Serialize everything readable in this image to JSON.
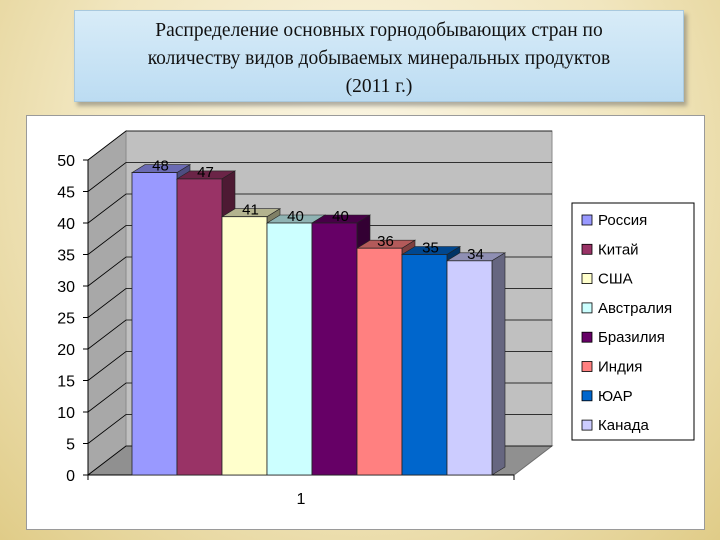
{
  "title": {
    "line1": "Распределение основных горнодобывающих стран по",
    "line2": "количеству видов добываемых минеральных продуктов",
    "line3": "(2011 г.)"
  },
  "chart_data": {
    "type": "bar",
    "categories": [
      "1"
    ],
    "series": [
      {
        "name": "Россия",
        "values": [
          48
        ],
        "color": "#9999ff"
      },
      {
        "name": "Китай",
        "values": [
          47
        ],
        "color": "#993366"
      },
      {
        "name": "США",
        "values": [
          41
        ],
        "color": "#ffffcc"
      },
      {
        "name": "Австралия",
        "values": [
          40
        ],
        "color": "#ccffff"
      },
      {
        "name": "Бразилия",
        "values": [
          40
        ],
        "color": "#660066"
      },
      {
        "name": "Индия",
        "values": [
          36
        ],
        "color": "#ff8080"
      },
      {
        "name": "ЮАР",
        "values": [
          35
        ],
        "color": "#0066cc"
      },
      {
        "name": "Канада",
        "values": [
          34
        ],
        "color": "#ccccff"
      }
    ],
    "ylim": [
      0,
      50
    ],
    "yticks": [
      "0",
      "5",
      "10",
      "15",
      "20",
      "25",
      "30",
      "35",
      "40",
      "45",
      "50"
    ],
    "grid": true,
    "legend_position": "right",
    "three_d": true,
    "xlabel": "",
    "ylabel": ""
  }
}
